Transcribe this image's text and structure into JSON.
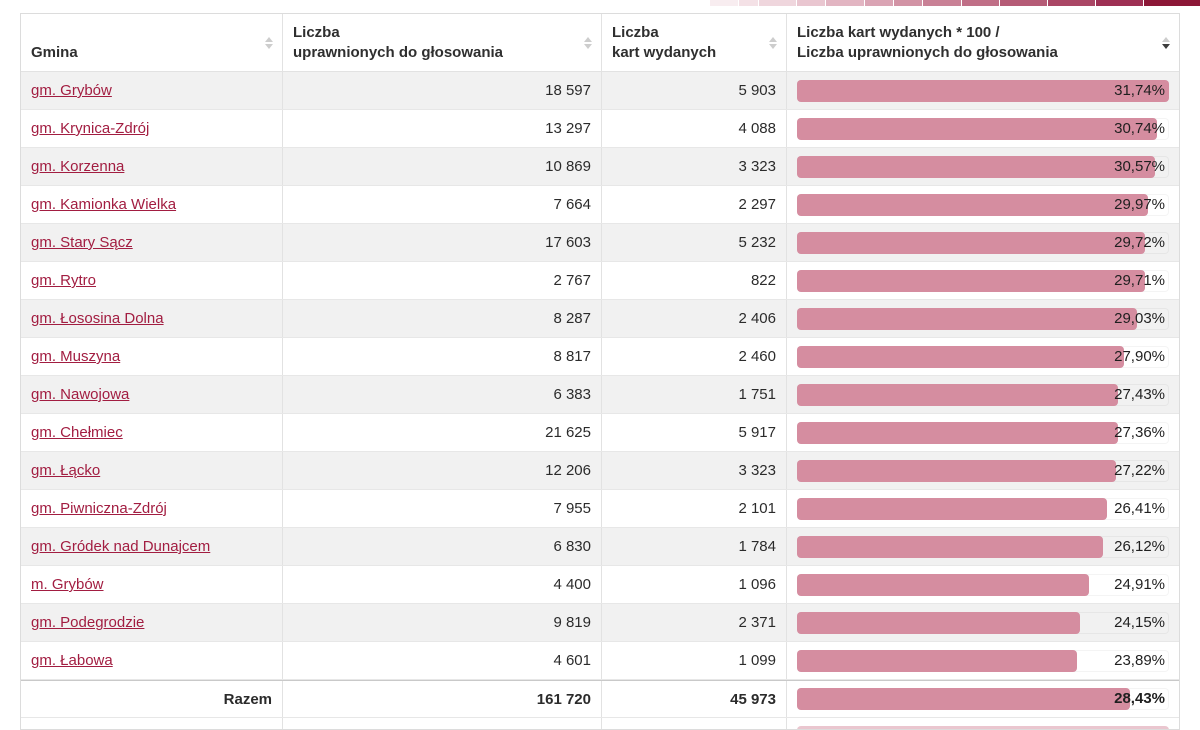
{
  "legend_strip": {
    "segments": [
      {
        "color": "#f8edf0",
        "w": 3
      },
      {
        "color": "#f4e1e6",
        "w": 2
      },
      {
        "color": "#efd6dd",
        "w": 4
      },
      {
        "color": "#e9c6d0",
        "w": 3
      },
      {
        "color": "#e2b5c2",
        "w": 4
      },
      {
        "color": "#daa4b4",
        "w": 3
      },
      {
        "color": "#d293a5",
        "w": 3
      },
      {
        "color": "#c98196",
        "w": 4
      },
      {
        "color": "#c06f87",
        "w": 4
      },
      {
        "color": "#b55b76",
        "w": 5
      },
      {
        "color": "#aa4665",
        "w": 5
      },
      {
        "color": "#9e3054",
        "w": 5
      },
      {
        "color": "#8c1737",
        "w": 6
      }
    ]
  },
  "colors": {
    "bar": "#d58da0",
    "link": "#a21d41",
    "row_stripe": "#f1f1f1"
  },
  "chart_data": {
    "type": "bar",
    "title": "Liczba kart wydanych * 100 / Liczba uprawnionych do głosowania",
    "categories": [
      "gm. Grybów",
      "gm. Krynica-Zdrój",
      "gm. Korzenna",
      "gm. Kamionka Wielka",
      "gm. Stary Sącz",
      "gm. Rytro",
      "gm. Łososina Dolna",
      "gm. Muszyna",
      "gm. Nawojowa",
      "gm. Chełmiec",
      "gm. Łącko",
      "gm. Piwniczna-Zdrój",
      "gm. Gródek nad Dunajcem",
      "m. Grybów",
      "gm. Podegrodzie",
      "gm. Łabowa"
    ],
    "values": [
      31.74,
      30.74,
      30.57,
      29.97,
      29.72,
      29.71,
      29.03,
      27.9,
      27.43,
      27.36,
      27.22,
      26.41,
      26.12,
      24.91,
      24.15,
      23.89
    ],
    "total_value": 28.43,
    "xlim": [
      0,
      31.74
    ]
  },
  "table": {
    "columns": [
      {
        "lines": [
          "Gmina"
        ],
        "sort": "none"
      },
      {
        "lines": [
          "Liczba",
          "uprawnionych do głosowania"
        ],
        "sort": "none"
      },
      {
        "lines": [
          "Liczba",
          "kart wydanych"
        ],
        "sort": "none"
      },
      {
        "lines": [
          "Liczba kart wydanych * 100 /",
          "Liczba uprawnionych do głosowania"
        ],
        "sort": "desc"
      }
    ],
    "pct_max": 31.74,
    "rows": [
      {
        "gmina": "gm. Grybów",
        "eligible": "18 597",
        "ballots": "5 903",
        "pct_label": "31,74%",
        "pct": 31.74
      },
      {
        "gmina": "gm. Krynica-Zdrój",
        "eligible": "13 297",
        "ballots": "4 088",
        "pct_label": "30,74%",
        "pct": 30.74
      },
      {
        "gmina": "gm. Korzenna",
        "eligible": "10 869",
        "ballots": "3 323",
        "pct_label": "30,57%",
        "pct": 30.57
      },
      {
        "gmina": "gm. Kamionka Wielka",
        "eligible": "7 664",
        "ballots": "2 297",
        "pct_label": "29,97%",
        "pct": 29.97
      },
      {
        "gmina": "gm. Stary Sącz",
        "eligible": "17 603",
        "ballots": "5 232",
        "pct_label": "29,72%",
        "pct": 29.72
      },
      {
        "gmina": "gm. Rytro",
        "eligible": "2 767",
        "ballots": "822",
        "pct_label": "29,71%",
        "pct": 29.71
      },
      {
        "gmina": "gm. Łososina Dolna",
        "eligible": "8 287",
        "ballots": "2 406",
        "pct_label": "29,03%",
        "pct": 29.03
      },
      {
        "gmina": "gm. Muszyna",
        "eligible": "8 817",
        "ballots": "2 460",
        "pct_label": "27,90%",
        "pct": 27.9
      },
      {
        "gmina": "gm. Nawojowa",
        "eligible": "6 383",
        "ballots": "1 751",
        "pct_label": "27,43%",
        "pct": 27.43
      },
      {
        "gmina": "gm. Chełmiec",
        "eligible": "21 625",
        "ballots": "5 917",
        "pct_label": "27,36%",
        "pct": 27.36
      },
      {
        "gmina": "gm. Łącko",
        "eligible": "12 206",
        "ballots": "3 323",
        "pct_label": "27,22%",
        "pct": 27.22
      },
      {
        "gmina": "gm. Piwniczna-Zdrój",
        "eligible": "7 955",
        "ballots": "2 101",
        "pct_label": "26,41%",
        "pct": 26.41
      },
      {
        "gmina": "gm. Gródek nad Dunajcem",
        "eligible": "6 830",
        "ballots": "1 784",
        "pct_label": "26,12%",
        "pct": 26.12
      },
      {
        "gmina": "m. Grybów",
        "eligible": "4 400",
        "ballots": "1 096",
        "pct_label": "24,91%",
        "pct": 24.91
      },
      {
        "gmina": "gm. Podegrodzie",
        "eligible": "9 819",
        "ballots": "2 371",
        "pct_label": "24,15%",
        "pct": 24.15
      },
      {
        "gmina": "gm. Łabowa",
        "eligible": "4 601",
        "ballots": "1 099",
        "pct_label": "23,89%",
        "pct": 23.89
      }
    ],
    "total": {
      "label": "Razem",
      "eligible": "161 720",
      "ballots": "45 973",
      "pct_label": "28,43%",
      "pct": 28.43
    }
  }
}
